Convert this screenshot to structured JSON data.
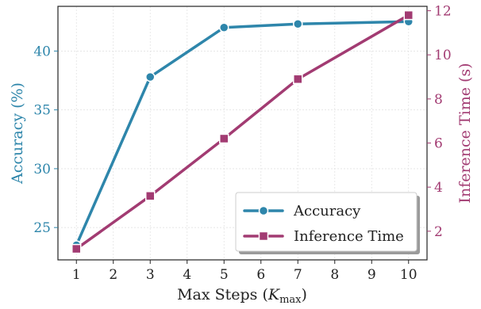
{
  "chart_data": {
    "type": "line",
    "x": [
      1,
      3,
      5,
      7,
      10
    ],
    "xticks": [
      1,
      2,
      3,
      4,
      5,
      6,
      7,
      8,
      9,
      10
    ],
    "xlim": [
      0.5,
      10.5
    ],
    "xlabel_main": "Max Steps (",
    "xlabel_var": "K",
    "xlabel_sub": "max",
    "xlabel_close": ")",
    "grid": true,
    "legend_position": "bottom-right",
    "series": [
      {
        "name": "Accuracy",
        "axis": "left",
        "marker": "circle",
        "color": "#2e86ab",
        "values": [
          23.5,
          37.8,
          42.0,
          42.3,
          42.5
        ]
      },
      {
        "name": "Inference Time",
        "axis": "right",
        "marker": "square",
        "color": "#a23b72",
        "values": [
          1.2,
          3.6,
          6.2,
          8.9,
          11.8
        ]
      }
    ],
    "y_left": {
      "label": "Accuracy (%)",
      "ylim": [
        22.25,
        43.8
      ],
      "ticks": [
        25,
        30,
        35,
        40
      ],
      "color": "#2e86ab"
    },
    "y_right": {
      "label": "Inference Time (s)",
      "ylim": [
        0.7,
        12.2
      ],
      "ticks": [
        2,
        4,
        6,
        8,
        10,
        12
      ],
      "color": "#a23b72"
    }
  }
}
